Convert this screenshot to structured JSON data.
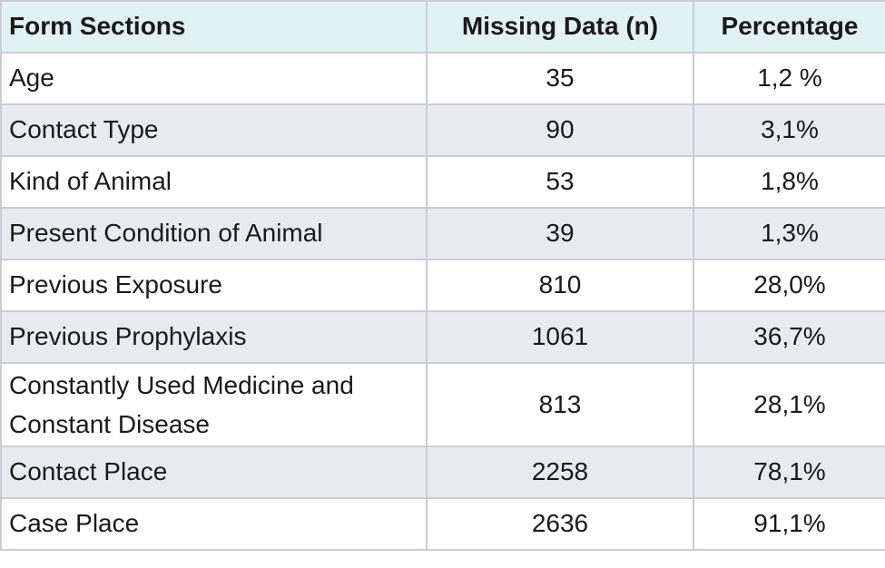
{
  "table": {
    "header": [
      "Form Sections",
      "Missing Data (n)",
      "Percentage"
    ],
    "rows": [
      [
        "Age",
        35,
        "1,2 %"
      ],
      [
        "Contact Type",
        90,
        "3,1%"
      ],
      [
        "Kind of Animal",
        53,
        "1,8%"
      ],
      [
        "Present Condition of Animal",
        39,
        "1,3%"
      ],
      [
        "Previous Exposure",
        810,
        "28,0%"
      ],
      [
        "Previous Prophylaxis",
        1061,
        "36,7%"
      ],
      [
        "Constantly Used Medicine and Constant Disease",
        813,
        "28,1%"
      ],
      [
        "Contact Place",
        2258,
        "78,1%"
      ],
      [
        "Case Place",
        2636,
        "91,1%"
      ]
    ]
  }
}
